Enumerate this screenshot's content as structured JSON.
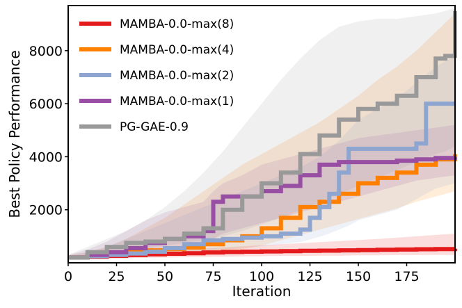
{
  "chart_data": {
    "type": "line",
    "title": "",
    "xlabel": "Iteration",
    "ylabel": "Best Policy Performance",
    "xlim": [
      0,
      200
    ],
    "ylim": [
      0,
      9700
    ],
    "xticks": [
      0,
      25,
      50,
      75,
      100,
      125,
      150,
      175
    ],
    "yticks": [
      2000,
      4000,
      6000,
      8000
    ],
    "grid": false,
    "legend_position": "top-left",
    "series": [
      {
        "name": "MAMBA-0.0-max(8)",
        "color": "#e41a1c",
        "x": [
          0,
          10,
          20,
          30,
          40,
          50,
          60,
          70,
          80,
          90,
          100,
          110,
          120,
          130,
          140,
          150,
          160,
          170,
          180,
          190,
          200
        ],
        "y": [
          200,
          230,
          260,
          290,
          320,
          340,
          360,
          390,
          410,
          420,
          430,
          440,
          450,
          460,
          470,
          480,
          490,
          500,
          510,
          520,
          530
        ],
        "band_low": [
          150,
          160,
          170,
          180,
          190,
          200,
          210,
          220,
          230,
          240,
          250,
          260,
          260,
          270,
          270,
          280,
          280,
          290,
          290,
          300,
          300
        ],
        "band_high": [
          260,
          300,
          340,
          380,
          420,
          460,
          500,
          540,
          580,
          620,
          660,
          700,
          740,
          780,
          820,
          860,
          900,
          950,
          1000,
          1050,
          1100
        ]
      },
      {
        "name": "MAMBA-0.0-max(4)",
        "color": "#ff7f00",
        "x": [
          0,
          10,
          20,
          30,
          40,
          50,
          60,
          70,
          80,
          90,
          100,
          110,
          120,
          130,
          140,
          150,
          160,
          170,
          180,
          190,
          200
        ],
        "y": [
          200,
          260,
          330,
          400,
          470,
          520,
          580,
          700,
          850,
          1000,
          1300,
          1700,
          2100,
          2300,
          2600,
          3000,
          3200,
          3400,
          3700,
          3900,
          4100
        ],
        "band_low": [
          150,
          180,
          220,
          260,
          300,
          340,
          380,
          420,
          460,
          520,
          650,
          850,
          1050,
          1250,
          1450,
          1650,
          1850,
          2050,
          2300,
          2500,
          2700
        ],
        "band_high": [
          280,
          400,
          600,
          900,
          1300,
          1700,
          2200,
          2700,
          3200,
          3700,
          4100,
          4500,
          4900,
          5300,
          5800,
          6300,
          6900,
          7400,
          8000,
          8700,
          9400
        ]
      },
      {
        "name": "MAMBA-0.0-max(2)",
        "color": "#8ea5cf",
        "x": [
          0,
          10,
          20,
          30,
          40,
          50,
          60,
          70,
          80,
          90,
          100,
          110,
          120,
          125,
          130,
          135,
          140,
          145,
          150,
          160,
          170,
          175,
          180,
          185,
          190,
          200
        ],
        "y": [
          200,
          250,
          300,
          350,
          420,
          550,
          700,
          850,
          900,
          950,
          1000,
          1100,
          1250,
          1700,
          2100,
          2600,
          3400,
          4300,
          4300,
          4300,
          4300,
          4300,
          4500,
          6000,
          6000,
          6000
        ],
        "band_low": [
          150,
          180,
          210,
          240,
          280,
          320,
          380,
          440,
          500,
          560,
          620,
          700,
          780,
          880,
          980,
          1100,
          1250,
          1400,
          1600,
          1800,
          2000,
          2200,
          2400,
          2600,
          2800,
          3000
        ],
        "band_high": [
          280,
          400,
          600,
          900,
          1200,
          1500,
          1800,
          2100,
          2400,
          2700,
          3000,
          3300,
          3600,
          3800,
          4000,
          4300,
          4600,
          5000,
          5400,
          5800,
          6200,
          6500,
          6800,
          7100,
          7400,
          7800
        ]
      },
      {
        "name": "MAMBA-0.0-max(1)",
        "color": "#984ea3",
        "x": [
          0,
          10,
          20,
          30,
          40,
          50,
          60,
          70,
          75,
          80,
          90,
          95,
          100,
          110,
          120,
          130,
          140,
          150,
          160,
          170,
          180,
          190,
          200
        ],
        "y": [
          200,
          300,
          400,
          550,
          750,
          900,
          1000,
          1200,
          2300,
          2500,
          2500,
          2500,
          2700,
          2900,
          3300,
          3700,
          3800,
          3800,
          3800,
          3850,
          3900,
          3950,
          4000
        ],
        "band_low": [
          150,
          200,
          260,
          320,
          400,
          500,
          600,
          700,
          900,
          1100,
          1300,
          1400,
          1500,
          1700,
          1900,
          2100,
          2300,
          2500,
          2700,
          2900,
          3100,
          3200,
          3300
        ],
        "band_high": [
          300,
          500,
          800,
          1200,
          1600,
          1900,
          2100,
          2300,
          2700,
          3000,
          3300,
          3500,
          3700,
          3900,
          4100,
          4300,
          4500,
          4700,
          4800,
          4900,
          5000,
          5100,
          5200
        ]
      },
      {
        "name": "PG-GAE-0.9",
        "color": "#999999",
        "x": [
          0,
          10,
          20,
          30,
          40,
          50,
          60,
          70,
          80,
          90,
          100,
          110,
          120,
          130,
          140,
          150,
          160,
          170,
          180,
          190,
          195,
          200
        ],
        "y": [
          200,
          400,
          600,
          750,
          800,
          900,
          1100,
          1300,
          2000,
          2500,
          3000,
          3400,
          4100,
          4800,
          5400,
          5800,
          6000,
          6300,
          7000,
          7700,
          7800,
          9500
        ],
        "band_low": [
          150,
          250,
          350,
          450,
          550,
          650,
          750,
          850,
          1000,
          1200,
          1450,
          1700,
          2000,
          2300,
          2600,
          2900,
          3200,
          3500,
          3800,
          4100,
          4200,
          4400
        ],
        "band_high": [
          300,
          600,
          900,
          1200,
          1600,
          2100,
          2700,
          3400,
          4200,
          5100,
          6000,
          6900,
          7700,
          8400,
          8900,
          9100,
          9200,
          9200,
          9300,
          9400,
          9500,
          9600
        ]
      }
    ]
  }
}
